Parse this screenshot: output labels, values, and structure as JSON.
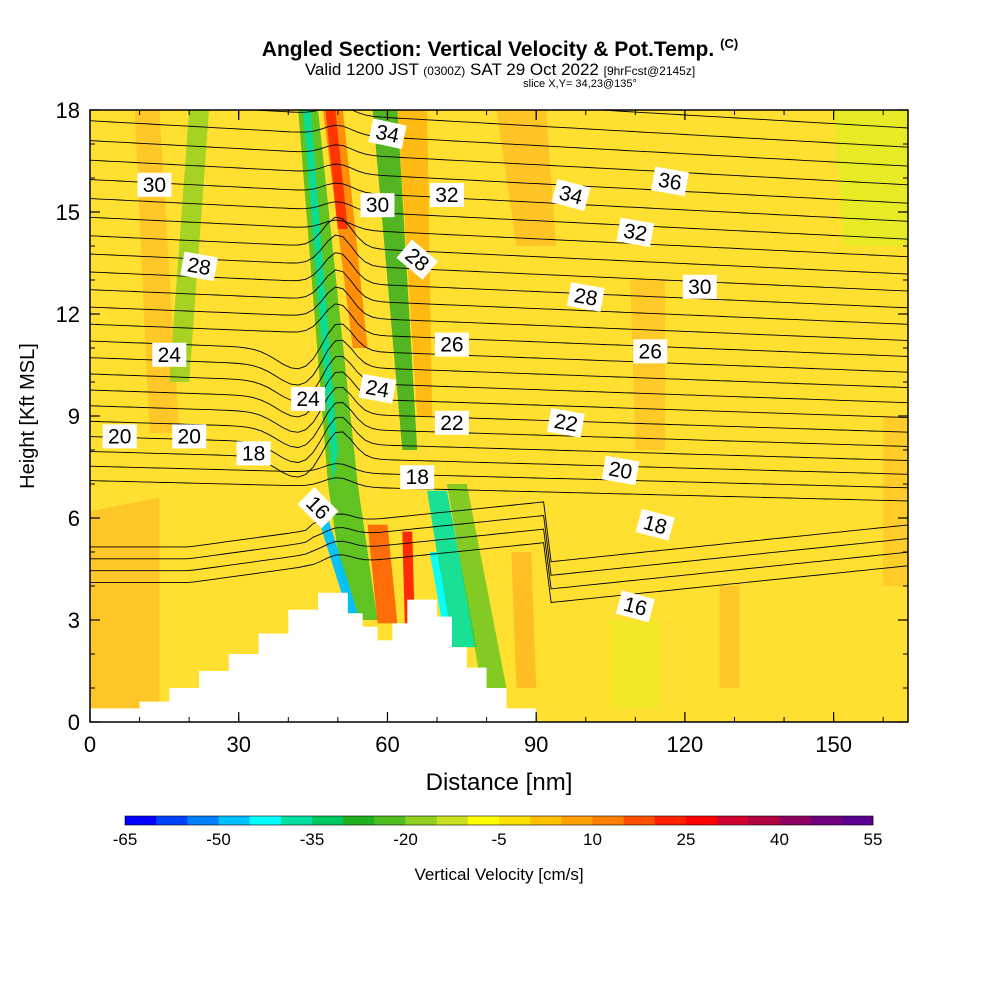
{
  "title": {
    "main": "Angled Section: Vertical Velocity & Pot.Temp.",
    "tag": "(C)",
    "valid_prefix": "Valid 1200 JST",
    "valid_utc": "(0300Z)",
    "valid_date": "SAT 29 Oct 2022",
    "valid_fcst": "[9hrFcst@2145z]",
    "slice": "slice X,Y= 34,23@135°"
  },
  "chart_data": {
    "type": "heatmap",
    "xlabel": "Distance [nm]",
    "ylabel": "Height [Kft MSL]",
    "xlim": [
      0,
      165
    ],
    "ylim": [
      0,
      18
    ],
    "xticks": [
      "0",
      "30",
      "60",
      "90",
      "120",
      "150"
    ],
    "yticks": [
      "0",
      "3",
      "6",
      "9",
      "12",
      "15",
      "18"
    ],
    "colorbar": {
      "label": "Vertical Velocity [cm/s]",
      "tick_labels": [
        "-65",
        "-50",
        "-35",
        "-20",
        "-5",
        "10",
        "25",
        "40",
        "55"
      ],
      "colors": [
        "#0000ff",
        "#0040ff",
        "#0080ff",
        "#00c0ff",
        "#00ffff",
        "#00e0a0",
        "#00c860",
        "#20b020",
        "#50c020",
        "#90d020",
        "#c8e020",
        "#ffff00",
        "#ffe000",
        "#ffc000",
        "#ffa000",
        "#ff8000",
        "#ff5000",
        "#ff2000",
        "#ff0000",
        "#d00030",
        "#b00040",
        "#900060",
        "#700080",
        "#5a0090"
      ]
    },
    "background_color": "#ffe030",
    "terrain": [
      [
        0,
        0.4
      ],
      [
        10,
        0.4
      ],
      [
        10,
        0.6
      ],
      [
        16,
        0.6
      ],
      [
        16,
        1.0
      ],
      [
        22,
        1.0
      ],
      [
        22,
        1.5
      ],
      [
        28,
        1.5
      ],
      [
        28,
        2.0
      ],
      [
        34,
        2.0
      ],
      [
        34,
        2.6
      ],
      [
        40,
        2.6
      ],
      [
        40,
        3.3
      ],
      [
        46,
        3.3
      ],
      [
        46,
        3.8
      ],
      [
        52,
        3.8
      ],
      [
        52,
        3.2
      ],
      [
        55,
        3.2
      ],
      [
        55,
        2.8
      ],
      [
        58,
        2.8
      ],
      [
        58,
        2.4
      ],
      [
        61,
        2.4
      ],
      [
        61,
        2.9
      ],
      [
        64,
        2.9
      ],
      [
        64,
        3.6
      ],
      [
        70,
        3.6
      ],
      [
        70,
        3.1
      ],
      [
        73,
        3.1
      ],
      [
        73,
        2.2
      ],
      [
        76,
        2.2
      ],
      [
        76,
        1.6
      ],
      [
        80,
        1.6
      ],
      [
        80,
        1.0
      ],
      [
        84,
        1.0
      ],
      [
        84,
        0.4
      ],
      [
        90,
        0.4
      ],
      [
        90,
        0.0
      ]
    ],
    "contour_labels": [
      {
        "text": "34",
        "x": 60,
        "y": 17.3,
        "angle": 12
      },
      {
        "text": "30",
        "x": 13,
        "y": 15.8,
        "angle": 0
      },
      {
        "text": "30",
        "x": 58,
        "y": 15.2,
        "angle": 0
      },
      {
        "text": "32",
        "x": 72,
        "y": 15.5,
        "angle": 0
      },
      {
        "text": "34",
        "x": 97,
        "y": 15.5,
        "angle": 15
      },
      {
        "text": "36",
        "x": 117,
        "y": 15.9,
        "angle": 10
      },
      {
        "text": "32",
        "x": 110,
        "y": 14.4,
        "angle": 10
      },
      {
        "text": "28",
        "x": 22,
        "y": 13.4,
        "angle": 10
      },
      {
        "text": "28",
        "x": 66,
        "y": 13.6,
        "angle": 40
      },
      {
        "text": "28",
        "x": 100,
        "y": 12.5,
        "angle": 10
      },
      {
        "text": "30",
        "x": 123,
        "y": 12.8,
        "angle": 0
      },
      {
        "text": "26",
        "x": 73,
        "y": 11.1,
        "angle": 0
      },
      {
        "text": "26",
        "x": 113,
        "y": 10.9,
        "angle": 0
      },
      {
        "text": "24",
        "x": 16,
        "y": 10.8,
        "angle": 0
      },
      {
        "text": "24",
        "x": 44,
        "y": 9.5,
        "angle": 0
      },
      {
        "text": "24",
        "x": 58,
        "y": 9.8,
        "angle": 10
      },
      {
        "text": "22",
        "x": 73,
        "y": 8.8,
        "angle": 0
      },
      {
        "text": "22",
        "x": 96,
        "y": 8.8,
        "angle": 10
      },
      {
        "text": "20",
        "x": 6,
        "y": 8.4,
        "angle": 0
      },
      {
        "text": "20",
        "x": 20,
        "y": 8.4,
        "angle": 0
      },
      {
        "text": "18",
        "x": 33,
        "y": 7.9,
        "angle": 0
      },
      {
        "text": "18",
        "x": 66,
        "y": 7.2,
        "angle": 0
      },
      {
        "text": "20",
        "x": 107,
        "y": 7.4,
        "angle": 10
      },
      {
        "text": "16",
        "x": 46,
        "y": 6.3,
        "angle": 45
      },
      {
        "text": "18",
        "x": 114,
        "y": 5.8,
        "angle": 15
      },
      {
        "text": "16",
        "x": 110,
        "y": 3.4,
        "angle": 15
      }
    ]
  }
}
